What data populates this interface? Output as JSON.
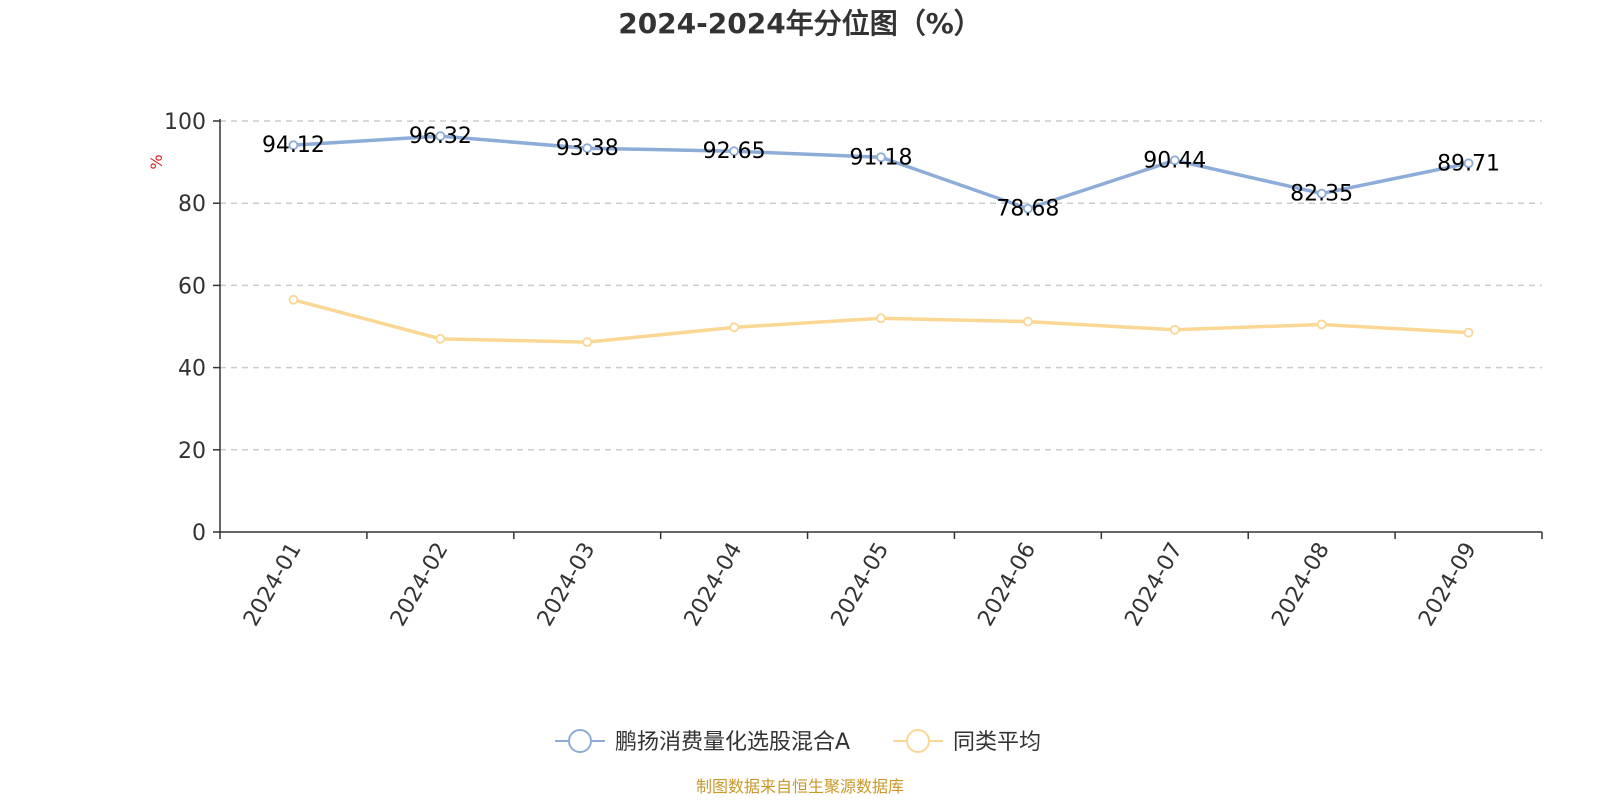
{
  "chart_data": {
    "type": "line",
    "title": "2024-2024年分位图（%）",
    "ylabel": "%",
    "ylim": [
      0,
      100
    ],
    "yticks": [
      0,
      20,
      40,
      60,
      80,
      100
    ],
    "grid": true,
    "legend_position": "bottom-center",
    "categories": [
      "2024-01",
      "2024-02",
      "2024-03",
      "2024-04",
      "2024-05",
      "2024-06",
      "2024-07",
      "2024-08",
      "2024-09"
    ],
    "series": [
      {
        "name": "鹏扬消费量化选股混合A",
        "color": "#8eacd8",
        "values": [
          94.12,
          96.32,
          93.38,
          92.65,
          91.18,
          78.68,
          90.44,
          82.35,
          89.71
        ],
        "show_labels": true
      },
      {
        "name": "同类平均",
        "color": "#fad795",
        "values": [
          56.5,
          47.0,
          46.2,
          49.8,
          52.0,
          51.2,
          49.2,
          50.5,
          48.5
        ],
        "show_labels": false
      }
    ],
    "source": "制图数据来自恒生聚源数据库"
  }
}
